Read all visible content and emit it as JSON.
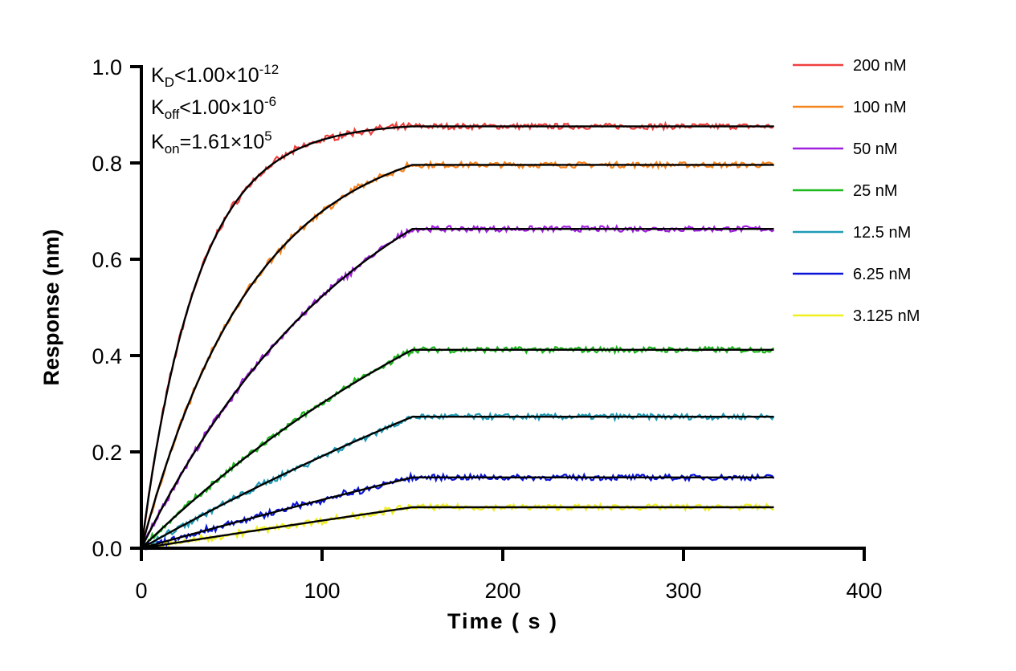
{
  "chart_data": {
    "type": "line",
    "title": "",
    "xlabel": "Time ( s )",
    "ylabel": "Response (nm)",
    "xlim": [
      0,
      400
    ],
    "ylim": [
      0,
      1.0
    ],
    "xticks": [
      "0",
      "100",
      "200",
      "300",
      "400"
    ],
    "yticks": [
      "0.0",
      "0.2",
      "0.4",
      "0.6",
      "0.8",
      "1.0"
    ],
    "grid": false,
    "legend_position": "right",
    "association_end_s": 150,
    "dissociation_end_s": 350,
    "fit_color": "#000000",
    "annotations": {
      "kd": {
        "base": "K",
        "sub": "D",
        "rel": "<1.00×10",
        "exp": "-12"
      },
      "koff": {
        "base": "K",
        "sub": "off",
        "rel": "<1.00×10",
        "exp": "-6"
      },
      "kon": {
        "base": "K",
        "sub": "on",
        "rel": "=1.61×10",
        "exp": "5"
      }
    },
    "kon": 161000,
    "series": [
      {
        "name": "200 nM",
        "conc_nM": 200,
        "color": "#f04040",
        "plateau": 0.876
      },
      {
        "name": "100 nM",
        "conc_nM": 100,
        "color": "#f5841f",
        "plateau": 0.796
      },
      {
        "name": "50 nM",
        "conc_nM": 50,
        "color": "#a020e0",
        "plateau": 0.663
      },
      {
        "name": "25 nM",
        "conc_nM": 25,
        "color": "#1cb81c",
        "plateau": 0.412
      },
      {
        "name": "12.5 nM",
        "conc_nM": 12.5,
        "color": "#1f9bb5",
        "plateau": 0.273
      },
      {
        "name": "6.25 nM",
        "conc_nM": 6.25,
        "color": "#0a14d8",
        "plateau": 0.147
      },
      {
        "name": "3.125 nM",
        "conc_nM": 3.125,
        "color": "#f0f020",
        "plateau": 0.085
      }
    ]
  }
}
